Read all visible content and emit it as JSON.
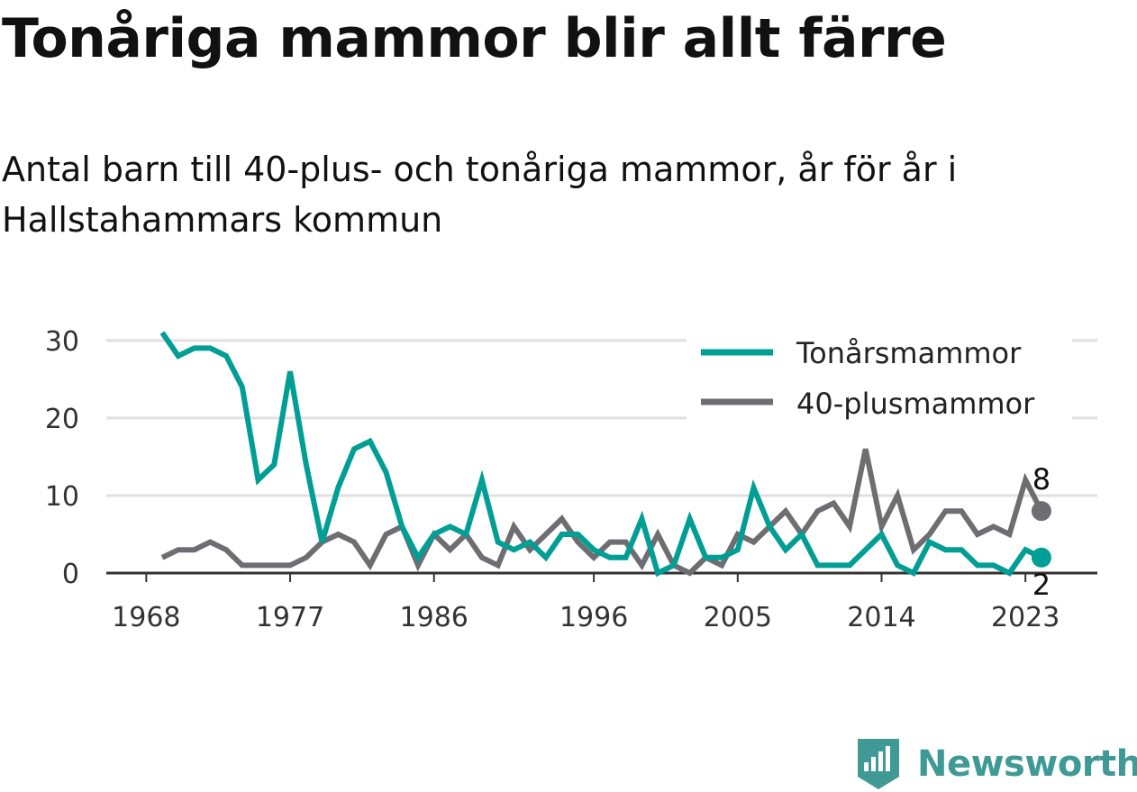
{
  "title": "Tonåriga mammor blir allt färre",
  "subtitle": "Antal barn till 40-plus- och tonåriga mammor, år för år i Hallstahammars kommun",
  "brand": "Newsworthy",
  "colors": {
    "teen": "#009e94",
    "forty": "#6e6d72",
    "grid": "#e0e0e0",
    "axis": "#333333",
    "brand": "#3f9a96"
  },
  "chart_data": {
    "type": "line",
    "x": [
      1969,
      1970,
      1971,
      1972,
      1973,
      1974,
      1975,
      1976,
      1977,
      1978,
      1979,
      1980,
      1981,
      1982,
      1983,
      1984,
      1985,
      1986,
      1987,
      1988,
      1989,
      1990,
      1991,
      1992,
      1993,
      1994,
      1995,
      1996,
      1997,
      1998,
      1999,
      2000,
      2001,
      2002,
      2003,
      2004,
      2005,
      2006,
      2007,
      2008,
      2009,
      2010,
      2011,
      2012,
      2013,
      2014,
      2015,
      2016,
      2017,
      2018,
      2019,
      2020,
      2021,
      2022,
      2023,
      2024
    ],
    "series": [
      {
        "name": "Tonårsmammor",
        "color": "#009e94",
        "values": [
          31,
          28,
          29,
          29,
          28,
          24,
          12,
          14,
          26,
          14,
          4,
          11,
          16,
          17,
          13,
          6,
          2,
          5,
          6,
          5,
          12,
          4,
          3,
          4,
          2,
          5,
          5,
          3,
          2,
          2,
          7,
          0,
          1,
          7,
          2,
          2,
          3,
          11,
          6,
          3,
          5,
          1,
          1,
          1,
          3,
          5,
          1,
          0,
          4,
          3,
          3,
          1,
          1,
          0,
          3,
          2
        ]
      },
      {
        "name": "40-plusmammor",
        "color": "#6e6d72",
        "values": [
          2,
          3,
          3,
          4,
          3,
          1,
          1,
          1,
          1,
          2,
          4,
          5,
          4,
          1,
          5,
          6,
          1,
          5,
          3,
          5,
          2,
          1,
          6,
          3,
          5,
          7,
          4,
          2,
          4,
          4,
          1,
          5,
          1,
          0,
          2,
          1,
          5,
          4,
          6,
          8,
          5,
          8,
          9,
          6,
          16,
          6,
          10,
          3,
          5,
          8,
          8,
          5,
          6,
          5,
          12,
          8
        ]
      }
    ],
    "x_ticks": [
      "1968",
      "1977",
      "1986",
      "1996",
      "2005",
      "2014",
      "2023"
    ],
    "y_ticks": [
      "0",
      "10",
      "20",
      "30"
    ],
    "ylim": [
      0,
      33
    ],
    "end_labels": {
      "teen": "2",
      "forty": "8"
    },
    "legend_position": "top-right",
    "grid": true
  }
}
